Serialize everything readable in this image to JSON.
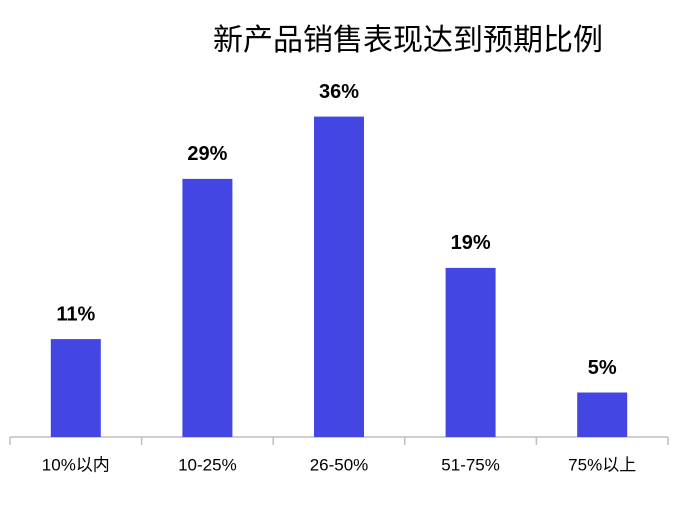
{
  "chart_data": {
    "type": "bar",
    "title": "新产品销售表现达到预期比例",
    "categories": [
      "10%以内",
      "10-25%",
      "26-50%",
      "51-75%",
      "75%以上"
    ],
    "values": [
      11,
      29,
      36,
      19,
      5
    ],
    "value_labels": [
      "11%",
      "29%",
      "36%",
      "19%",
      "5%"
    ],
    "color": "#4346e3"
  }
}
